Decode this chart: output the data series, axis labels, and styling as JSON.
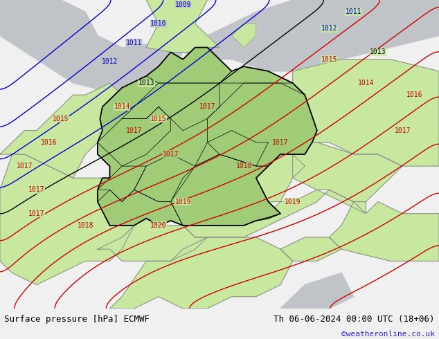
{
  "title_left": "Surface pressure [hPa] ECMWF",
  "title_right": "Th 06-06-2024 00:00 UTC (18+06)",
  "watermark": "©weatheronline.co.uk",
  "bg_color_land": "#c8e8a0",
  "bg_color_germany": "#a0cc78",
  "bg_color_sea": "#c0c4c8",
  "isobar_blue_color": "#0000cc",
  "isobar_black_color": "#000000",
  "isobar_red_color": "#cc0000",
  "label_fontsize": 7,
  "title_fontsize": 9,
  "figsize": [
    6.34,
    4.9
  ],
  "dpi": 100,
  "blue_isobars": [
    1009,
    1010,
    1011,
    1012
  ],
  "black_isobars": [
    1013
  ],
  "red_isobars": [
    1014,
    1015,
    1016,
    1017,
    1018,
    1019,
    1020
  ],
  "text_color_title": "#000000",
  "text_color_watermark": "#2222cc",
  "lon_min": 2.0,
  "lon_max": 20.0,
  "lat_min": 44.0,
  "lat_max": 57.0
}
